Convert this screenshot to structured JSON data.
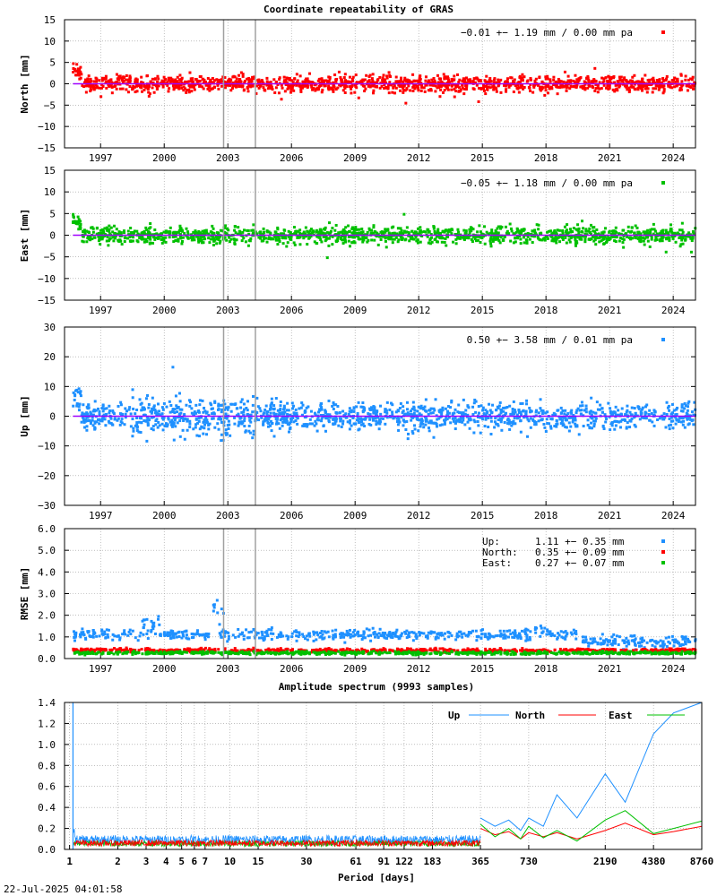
{
  "title": "Coordinate repeatability of GRAS",
  "footer_timestamp": "22-Jul-2025 04:01:58",
  "colors": {
    "north": "#ff0000",
    "east": "#00c000",
    "up": "#1e90ff",
    "zero": "#a000ff",
    "events": "#a0a0a0"
  },
  "year_ticks": [
    "1997",
    "2000",
    "2003",
    "2006",
    "2009",
    "2012",
    "2015",
    "2018",
    "2021",
    "2024"
  ],
  "chart_data": [
    {
      "id": "north",
      "type": "scatter",
      "ylabel": "North [mm]",
      "ylim": [
        -15,
        15
      ],
      "yticks": [
        "15",
        "10",
        "5",
        "0",
        "−5",
        "−10",
        "−15"
      ],
      "xlim": [
        1995.8,
        2025.55
      ],
      "stat": "−0.01 +− 1.19 mm /  0.00 mm pa",
      "events": [
        2003.3,
        2004.8
      ]
    },
    {
      "id": "east",
      "type": "scatter",
      "ylabel": "East [mm]",
      "ylim": [
        -15,
        15
      ],
      "yticks": [
        "15",
        "10",
        "5",
        "0",
        "−5",
        "−10",
        "−15"
      ],
      "xlim": [
        1995.8,
        2025.55
      ],
      "stat": "−0.05 +− 1.18 mm /  0.00 mm pa",
      "events": [
        2003.3,
        2004.8
      ]
    },
    {
      "id": "up",
      "type": "scatter",
      "ylabel": "Up [mm]",
      "ylim": [
        -30,
        30
      ],
      "yticks": [
        "30",
        "20",
        "10",
        "0",
        "−10",
        "−20",
        "−30"
      ],
      "xlim": [
        1995.8,
        2025.55
      ],
      "stat": " 0.50 +− 3.58 mm /  0.01 mm pa",
      "events": [
        2003.3,
        2004.8
      ]
    },
    {
      "id": "rmse",
      "type": "scatter",
      "ylabel": "RMSE [mm]",
      "ylim": [
        0,
        6
      ],
      "yticks": [
        "6.0",
        "5.0",
        "4.0",
        "3.0",
        "2.0",
        "1.0",
        "0.0"
      ],
      "xlim": [
        1995.8,
        2025.55
      ],
      "legend": [
        {
          "name": "Up:",
          "text": "1.11 +− 0.35 mm"
        },
        {
          "name": "North:",
          "text": "0.35 +− 0.09 mm"
        },
        {
          "name": "East:",
          "text": "0.27 +− 0.07 mm"
        }
      ],
      "events": [
        2003.3,
        2004.8
      ]
    },
    {
      "id": "spectrum",
      "type": "line",
      "title": "Amplitude spectrum (9993 samples)",
      "xlabel": "Period [days]",
      "ylim": [
        0,
        1.4
      ],
      "yticks": [
        "1.4",
        "1.2",
        "1.0",
        "0.8",
        "0.6",
        "0.4",
        "0.2",
        "0.0"
      ],
      "xticks": [
        "1",
        "2",
        "3",
        "4",
        "5",
        "6",
        "7",
        "10",
        "15",
        "30",
        "61",
        "91",
        "122",
        "183",
        "365",
        "730",
        "2190",
        "4380",
        "8760"
      ],
      "series": [
        {
          "name": "Up",
          "x": [
            365,
            450,
            548,
            650,
            730,
            900,
            1095,
            1460,
            2190,
            2920,
            4380,
            5840,
            8760
          ],
          "y": [
            0.3,
            0.22,
            0.28,
            0.18,
            0.3,
            0.22,
            0.52,
            0.3,
            0.72,
            0.45,
            1.1,
            1.3,
            1.4
          ]
        },
        {
          "name": "North",
          "x": [
            365,
            450,
            548,
            650,
            730,
            900,
            1095,
            1460,
            2190,
            2920,
            4380,
            5840,
            8760
          ],
          "y": [
            0.2,
            0.14,
            0.17,
            0.1,
            0.16,
            0.12,
            0.16,
            0.1,
            0.18,
            0.25,
            0.14,
            0.17,
            0.22
          ]
        },
        {
          "name": "East",
          "x": [
            365,
            450,
            548,
            650,
            730,
            900,
            1095,
            1460,
            2190,
            2920,
            4380,
            5840,
            8760
          ],
          "y": [
            0.24,
            0.12,
            0.2,
            0.1,
            0.22,
            0.11,
            0.18,
            0.08,
            0.28,
            0.37,
            0.15,
            0.2,
            0.27
          ]
        }
      ]
    }
  ]
}
